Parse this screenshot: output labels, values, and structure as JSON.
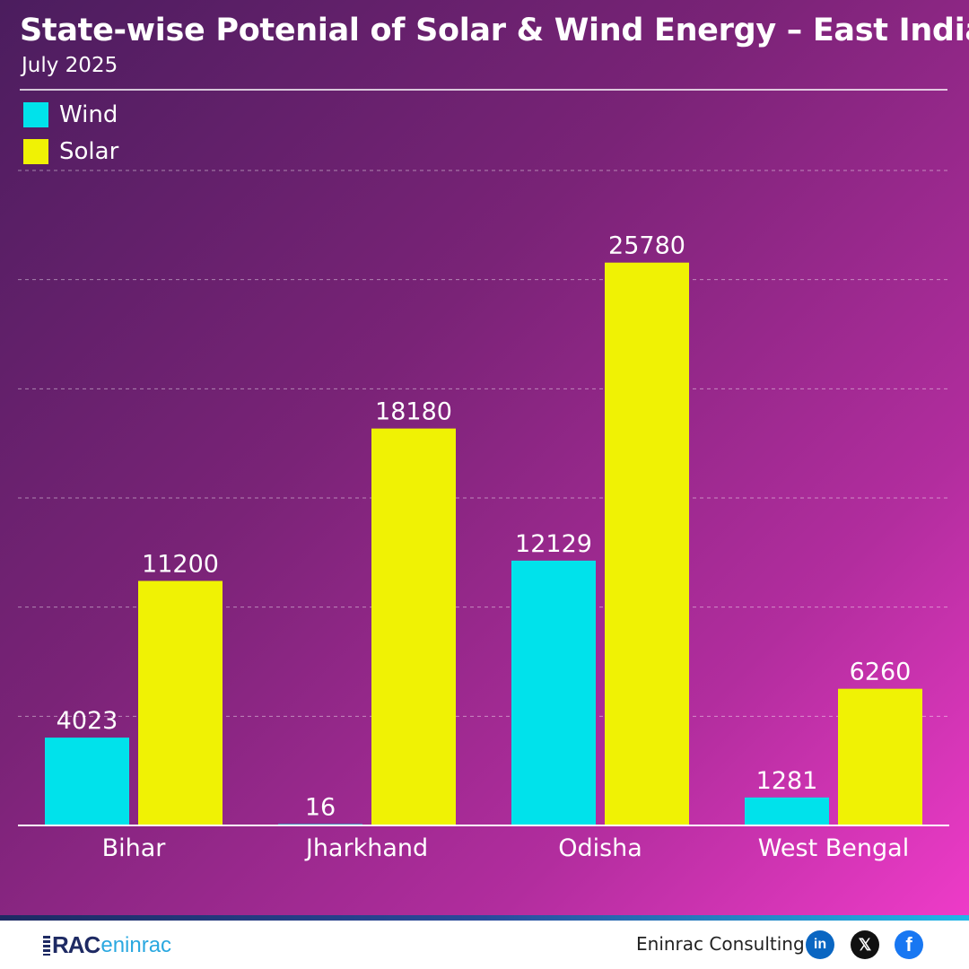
{
  "header": {
    "title": "State-wise Potenial of Solar & Wind Energy – East India",
    "subtitle": "July 2025"
  },
  "legend": [
    {
      "label": "Wind",
      "color": "#00e2eb"
    },
    {
      "label": "Solar",
      "color": "#f0f204"
    }
  ],
  "chart_data": {
    "type": "bar",
    "title": "State-wise Potenial of Solar & Wind Energy – East India",
    "subtitle": "July 2025",
    "categories": [
      "Bihar",
      "Jharkhand",
      "Odisha",
      "West Bengal"
    ],
    "series": [
      {
        "name": "Wind",
        "values": [
          4023,
          16,
          12129,
          1281
        ],
        "color": "#00e2eb"
      },
      {
        "name": "Solar",
        "values": [
          11200,
          18180,
          25780,
          6260
        ],
        "color": "#f0f204"
      }
    ],
    "ylim": [
      0,
      30000
    ],
    "grid": true,
    "legend_position": "top-left",
    "xlabel": "",
    "ylabel": ""
  },
  "footer": {
    "logo_rac": "RAC",
    "logo_brand": "eninrac",
    "company": "Eninrac Consulting",
    "social_icons": [
      "linkedin-icon",
      "x-icon",
      "facebook-icon"
    ],
    "linkedin_glyph": "in",
    "x_glyph": "𝕏",
    "facebook_glyph": "f"
  }
}
